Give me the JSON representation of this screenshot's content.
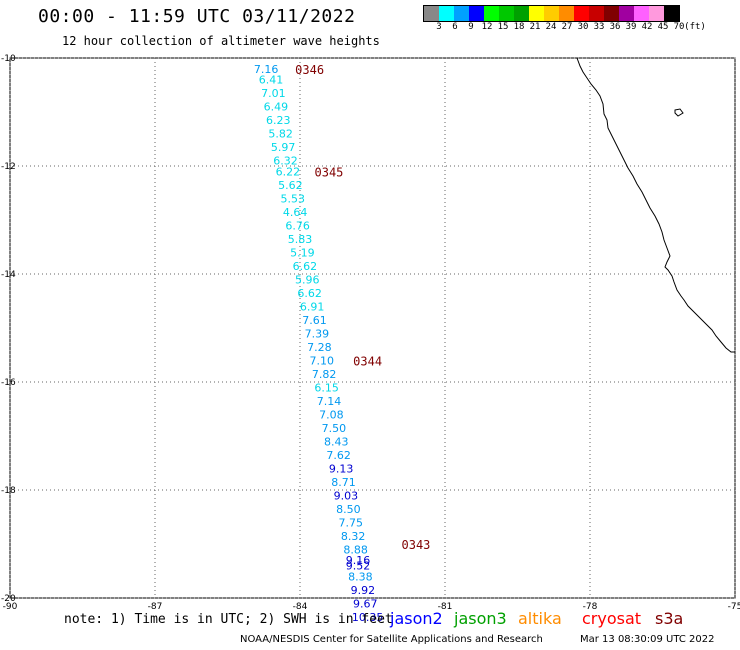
{
  "header": {
    "title": "00:00 - 11:59 UTC 03/11/2022",
    "subtitle": "12 hour collection of altimeter wave heights"
  },
  "legend": {
    "colors": [
      "#888888",
      "#00ffff",
      "#00a0ff",
      "#0000ff",
      "#00ff00",
      "#00c800",
      "#00a000",
      "#ffff00",
      "#ffcc00",
      "#ff8c00",
      "#ff0000",
      "#c80000",
      "#800000",
      "#a000a0",
      "#ff60ff",
      "#ff99dd",
      "#000000"
    ],
    "labels": [
      "3",
      "6",
      "9",
      "12",
      "15",
      "18",
      "21",
      "24",
      "27",
      "30",
      "33",
      "36",
      "39",
      "42",
      "45",
      "70",
      "(ft)"
    ]
  },
  "map": {
    "x_ticks": [
      "-90",
      "-87",
      "-84",
      "-81",
      "-78",
      "-75"
    ],
    "y_ticks": [
      "-10",
      "-12",
      "-14",
      "-16",
      "-18",
      "-20"
    ],
    "lon_range": [
      -90,
      -75
    ],
    "lat_range": [
      -20,
      -10
    ],
    "colors": {
      "cyan": "#00d8e8",
      "sky": "#0098f0",
      "blue": "#0000d0",
      "time_label": "#800000"
    },
    "time_labels": [
      {
        "text": "0346",
        "lat": -10.2,
        "lon": -84.1
      },
      {
        "text": "0345",
        "lat": -12.1,
        "lon": -83.7
      },
      {
        "text": "0344",
        "lat": -15.6,
        "lon": -82.9
      },
      {
        "text": "0343",
        "lat": -19.0,
        "lon": -81.9
      }
    ],
    "swh": [
      {
        "text": "7.16",
        "lat": -10.2,
        "lon": -84.7,
        "color": "sky"
      },
      {
        "text": "6.41",
        "lat": -10.4,
        "lon": -84.6,
        "color": "cyan"
      },
      {
        "text": "7.01",
        "lat": -10.65,
        "lon": -84.55,
        "color": "cyan"
      },
      {
        "text": "6.49",
        "lat": -10.9,
        "lon": -84.5,
        "color": "cyan"
      },
      {
        "text": "6.23",
        "lat": -11.15,
        "lon": -84.45,
        "color": "cyan"
      },
      {
        "text": "5.82",
        "lat": -11.4,
        "lon": -84.4,
        "color": "cyan"
      },
      {
        "text": "5.97",
        "lat": -11.65,
        "lon": -84.35,
        "color": "cyan"
      },
      {
        "text": "6.32",
        "lat": -11.9,
        "lon": -84.3,
        "color": "cyan"
      },
      {
        "text": "6.22",
        "lat": -12.1,
        "lon": -84.25,
        "color": "cyan"
      },
      {
        "text": "5.62",
        "lat": -12.35,
        "lon": -84.2,
        "color": "cyan"
      },
      {
        "text": "5.53",
        "lat": -12.6,
        "lon": -84.15,
        "color": "cyan"
      },
      {
        "text": "4.64",
        "lat": -12.85,
        "lon": -84.1,
        "color": "cyan"
      },
      {
        "text": "6.76",
        "lat": -13.1,
        "lon": -84.05,
        "color": "cyan"
      },
      {
        "text": "5.83",
        "lat": -13.35,
        "lon": -84.0,
        "color": "cyan"
      },
      {
        "text": "5.19",
        "lat": -13.6,
        "lon": -83.95,
        "color": "cyan"
      },
      {
        "text": "6.62",
        "lat": -13.85,
        "lon": -83.9,
        "color": "cyan"
      },
      {
        "text": "5.96",
        "lat": -14.1,
        "lon": -83.85,
        "color": "cyan"
      },
      {
        "text": "6.62",
        "lat": -14.35,
        "lon": -83.8,
        "color": "cyan"
      },
      {
        "text": "6.91",
        "lat": -14.6,
        "lon": -83.75,
        "color": "cyan"
      },
      {
        "text": "7.61",
        "lat": -14.85,
        "lon": -83.7,
        "color": "sky"
      },
      {
        "text": "7.39",
        "lat": -15.1,
        "lon": -83.65,
        "color": "sky"
      },
      {
        "text": "7.28",
        "lat": -15.35,
        "lon": -83.6,
        "color": "sky"
      },
      {
        "text": "7.10",
        "lat": -15.6,
        "lon": -83.55,
        "color": "sky"
      },
      {
        "text": "7.82",
        "lat": -15.85,
        "lon": -83.5,
        "color": "sky"
      },
      {
        "text": "6.15",
        "lat": -16.1,
        "lon": -83.45,
        "color": "cyan"
      },
      {
        "text": "7.14",
        "lat": -16.35,
        "lon": -83.4,
        "color": "sky"
      },
      {
        "text": "7.08",
        "lat": -16.6,
        "lon": -83.35,
        "color": "sky"
      },
      {
        "text": "7.50",
        "lat": -16.85,
        "lon": -83.3,
        "color": "sky"
      },
      {
        "text": "8.43",
        "lat": -17.1,
        "lon": -83.25,
        "color": "sky"
      },
      {
        "text": "7.62",
        "lat": -17.35,
        "lon": -83.2,
        "color": "sky"
      },
      {
        "text": "9.13",
        "lat": -17.6,
        "lon": -83.15,
        "color": "blue"
      },
      {
        "text": "8.71",
        "lat": -17.85,
        "lon": -83.1,
        "color": "sky"
      },
      {
        "text": "9.03",
        "lat": -18.1,
        "lon": -83.05,
        "color": "blue"
      },
      {
        "text": "8.50",
        "lat": -18.35,
        "lon": -83.0,
        "color": "sky"
      },
      {
        "text": "7.75",
        "lat": -18.6,
        "lon": -82.95,
        "color": "sky"
      },
      {
        "text": "8.32",
        "lat": -18.85,
        "lon": -82.9,
        "color": "sky"
      },
      {
        "text": "8.88",
        "lat": -19.1,
        "lon": -82.85,
        "color": "sky"
      },
      {
        "text": "9.16",
        "lat": -19.3,
        "lon": -82.8,
        "color": "blue"
      },
      {
        "text": "9.52",
        "lat": -19.4,
        "lon": -82.8,
        "color": "blue"
      },
      {
        "text": "8.38",
        "lat": -19.6,
        "lon": -82.75,
        "color": "sky"
      },
      {
        "text": "9.92",
        "lat": -19.85,
        "lon": -82.7,
        "color": "blue"
      },
      {
        "text": "9.67",
        "lat": -20.1,
        "lon": -82.65,
        "color": "blue"
      },
      {
        "text": "10.35",
        "lat": -20.35,
        "lon": -82.6,
        "color": "blue"
      }
    ]
  },
  "note": "note: 1) Time is in UTC; 2) SWH is in feet",
  "satellites": [
    {
      "name": "jason2",
      "color": "#0000ff"
    },
    {
      "name": "jason3",
      "color": "#00a000"
    },
    {
      "name": "altika",
      "color": "#ff8c00"
    },
    {
      "name": "cryosat",
      "color": "#ff0000"
    },
    {
      "name": "s3a",
      "color": "#800000"
    }
  ],
  "footer": {
    "credit": "NOAA/NESDIS Center for Satellite Applications and Research",
    "timestamp": "Mar 13 08:30:09 UTC 2022"
  }
}
